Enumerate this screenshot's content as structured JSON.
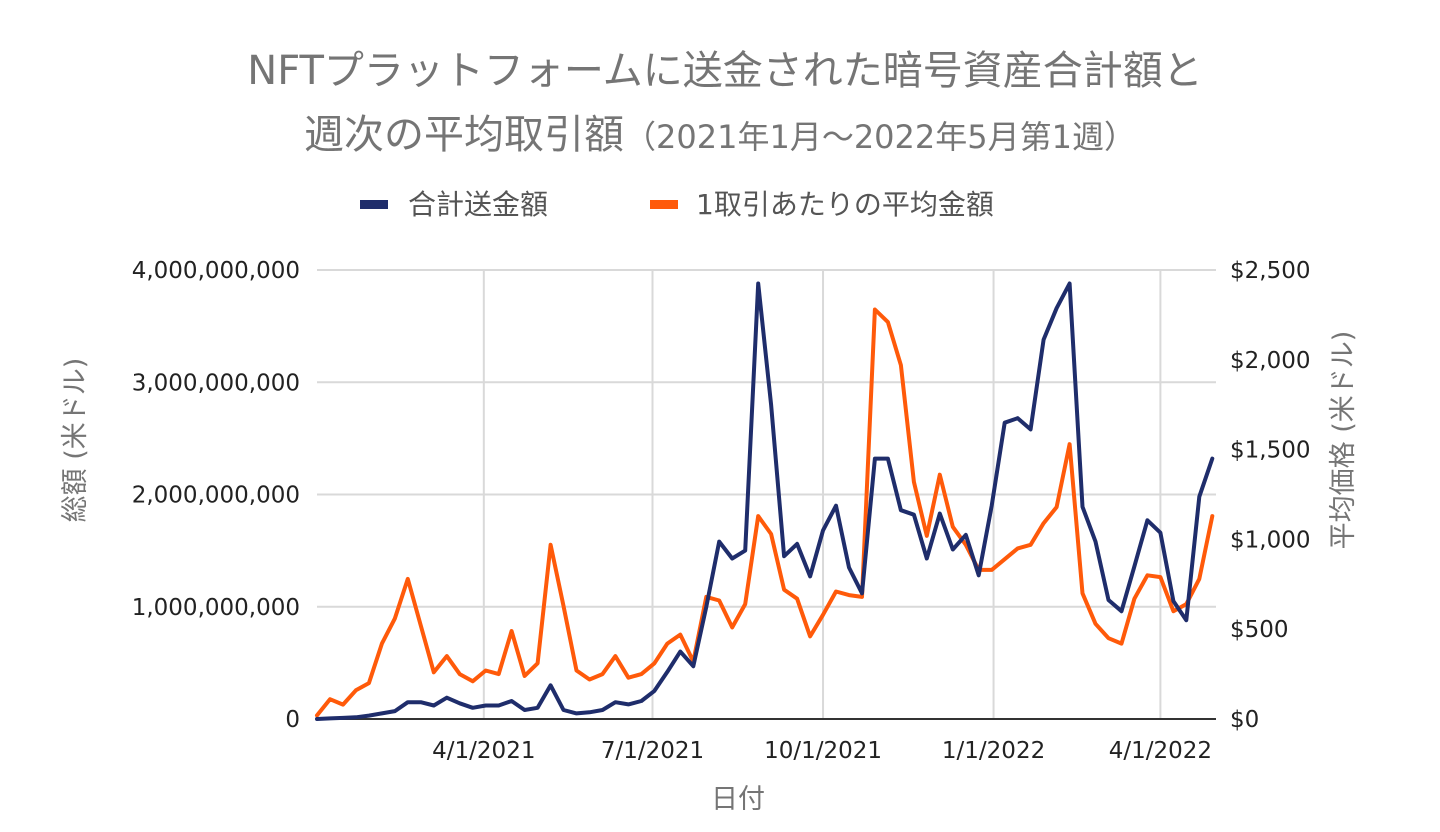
{
  "chart_data": {
    "type": "line",
    "title_line1": "NFTプラットフォームに送金された暗号資産合計額と",
    "title_line2_main": "週次の平均取引額",
    "title_line2_sub": "（2021年1月～2022年5月第1週）",
    "xlabel": "日付",
    "ylabel_left": "総額 (米ドル)",
    "ylabel_right": "平均価格 (米ドル)",
    "legend_position": "top",
    "grid": true,
    "x_tick_labels": [
      "4/1/2021",
      "7/1/2021",
      "10/1/2021",
      "1/1/2022",
      "4/1/2022"
    ],
    "x_tick_dates": [
      "2021-04-01",
      "2021-07-01",
      "2021-10-01",
      "2022-01-01",
      "2022-04-01"
    ],
    "x_range": [
      "2021-01-01",
      "2022-05-01"
    ],
    "y_left_range": [
      0,
      4000000000
    ],
    "y_left_ticks": [
      0,
      1000000000,
      2000000000,
      3000000000,
      4000000000
    ],
    "y_left_tick_labels": [
      "0",
      "1,000,000,000",
      "2,000,000,000",
      "3,000,000,000",
      "4,000,000,000"
    ],
    "y_right_range": [
      0,
      2500
    ],
    "y_right_ticks": [
      0,
      500,
      1000,
      1500,
      2000,
      2500
    ],
    "y_right_tick_labels": [
      "$0",
      "$500",
      "$1,000",
      "$1,500",
      "$2,000",
      "$2,500"
    ],
    "x": [
      "2021-01-01",
      "2021-01-08",
      "2021-01-15",
      "2021-01-22",
      "2021-01-29",
      "2021-02-05",
      "2021-02-12",
      "2021-02-19",
      "2021-02-26",
      "2021-03-05",
      "2021-03-12",
      "2021-03-19",
      "2021-03-26",
      "2021-04-02",
      "2021-04-09",
      "2021-04-16",
      "2021-04-23",
      "2021-04-30",
      "2021-05-07",
      "2021-05-14",
      "2021-05-21",
      "2021-05-28",
      "2021-06-04",
      "2021-06-11",
      "2021-06-18",
      "2021-06-25",
      "2021-07-02",
      "2021-07-09",
      "2021-07-16",
      "2021-07-23",
      "2021-07-30",
      "2021-08-06",
      "2021-08-13",
      "2021-08-20",
      "2021-08-27",
      "2021-09-03",
      "2021-09-10",
      "2021-09-17",
      "2021-09-24",
      "2021-10-01",
      "2021-10-08",
      "2021-10-15",
      "2021-10-22",
      "2021-10-29",
      "2021-11-05",
      "2021-11-12",
      "2021-11-19",
      "2021-11-26",
      "2021-12-03",
      "2021-12-10",
      "2021-12-17",
      "2021-12-24",
      "2021-12-31",
      "2022-01-07",
      "2022-01-14",
      "2022-01-21",
      "2022-01-28",
      "2022-02-04",
      "2022-02-11",
      "2022-02-18",
      "2022-02-25",
      "2022-03-04",
      "2022-03-11",
      "2022-03-18",
      "2022-03-25",
      "2022-04-01",
      "2022-04-08",
      "2022-04-15",
      "2022-04-22",
      "2022-04-29"
    ],
    "series": [
      {
        "name": "合計送金額",
        "axis": "left",
        "color": "#1f2d6b",
        "values": [
          0,
          5000000,
          10000000,
          15000000,
          30000000,
          50000000,
          70000000,
          150000000,
          150000000,
          120000000,
          190000000,
          140000000,
          100000000,
          120000000,
          120000000,
          160000000,
          80000000,
          100000000,
          300000000,
          80000000,
          50000000,
          60000000,
          80000000,
          150000000,
          130000000,
          160000000,
          250000000,
          420000000,
          600000000,
          470000000,
          1000000000,
          1580000000,
          1430000000,
          1500000000,
          3880000000,
          2800000000,
          1450000000,
          1560000000,
          1270000000,
          1680000000,
          1900000000,
          1350000000,
          1120000000,
          2320000000,
          2320000000,
          1860000000,
          1820000000,
          1430000000,
          1830000000,
          1510000000,
          1640000000,
          1280000000,
          1900000000,
          2640000000,
          2680000000,
          2580000000,
          3380000000,
          3660000000,
          3880000000,
          1890000000,
          1580000000,
          1060000000,
          960000000,
          1360000000,
          1770000000,
          1660000000,
          1050000000,
          880000000,
          1980000000,
          2320000000
        ]
      },
      {
        "name": "1取引あたりの平均金額",
        "axis": "right",
        "color": "#ff5a0a",
        "values": [
          20,
          110,
          80,
          160,
          200,
          420,
          560,
          780,
          520,
          260,
          350,
          250,
          210,
          270,
          250,
          490,
          240,
          310,
          970,
          630,
          270,
          220,
          250,
          350,
          230,
          250,
          310,
          420,
          470,
          320,
          680,
          660,
          510,
          640,
          1130,
          1030,
          720,
          670,
          460,
          580,
          710,
          690,
          680,
          2280,
          2210,
          1970,
          1320,
          1020,
          1360,
          1070,
          970,
          830,
          830,
          890,
          950,
          970,
          1090,
          1180,
          1530,
          700,
          530,
          450,
          420,
          670,
          800,
          790,
          600,
          640,
          780,
          1130
        ]
      }
    ]
  }
}
